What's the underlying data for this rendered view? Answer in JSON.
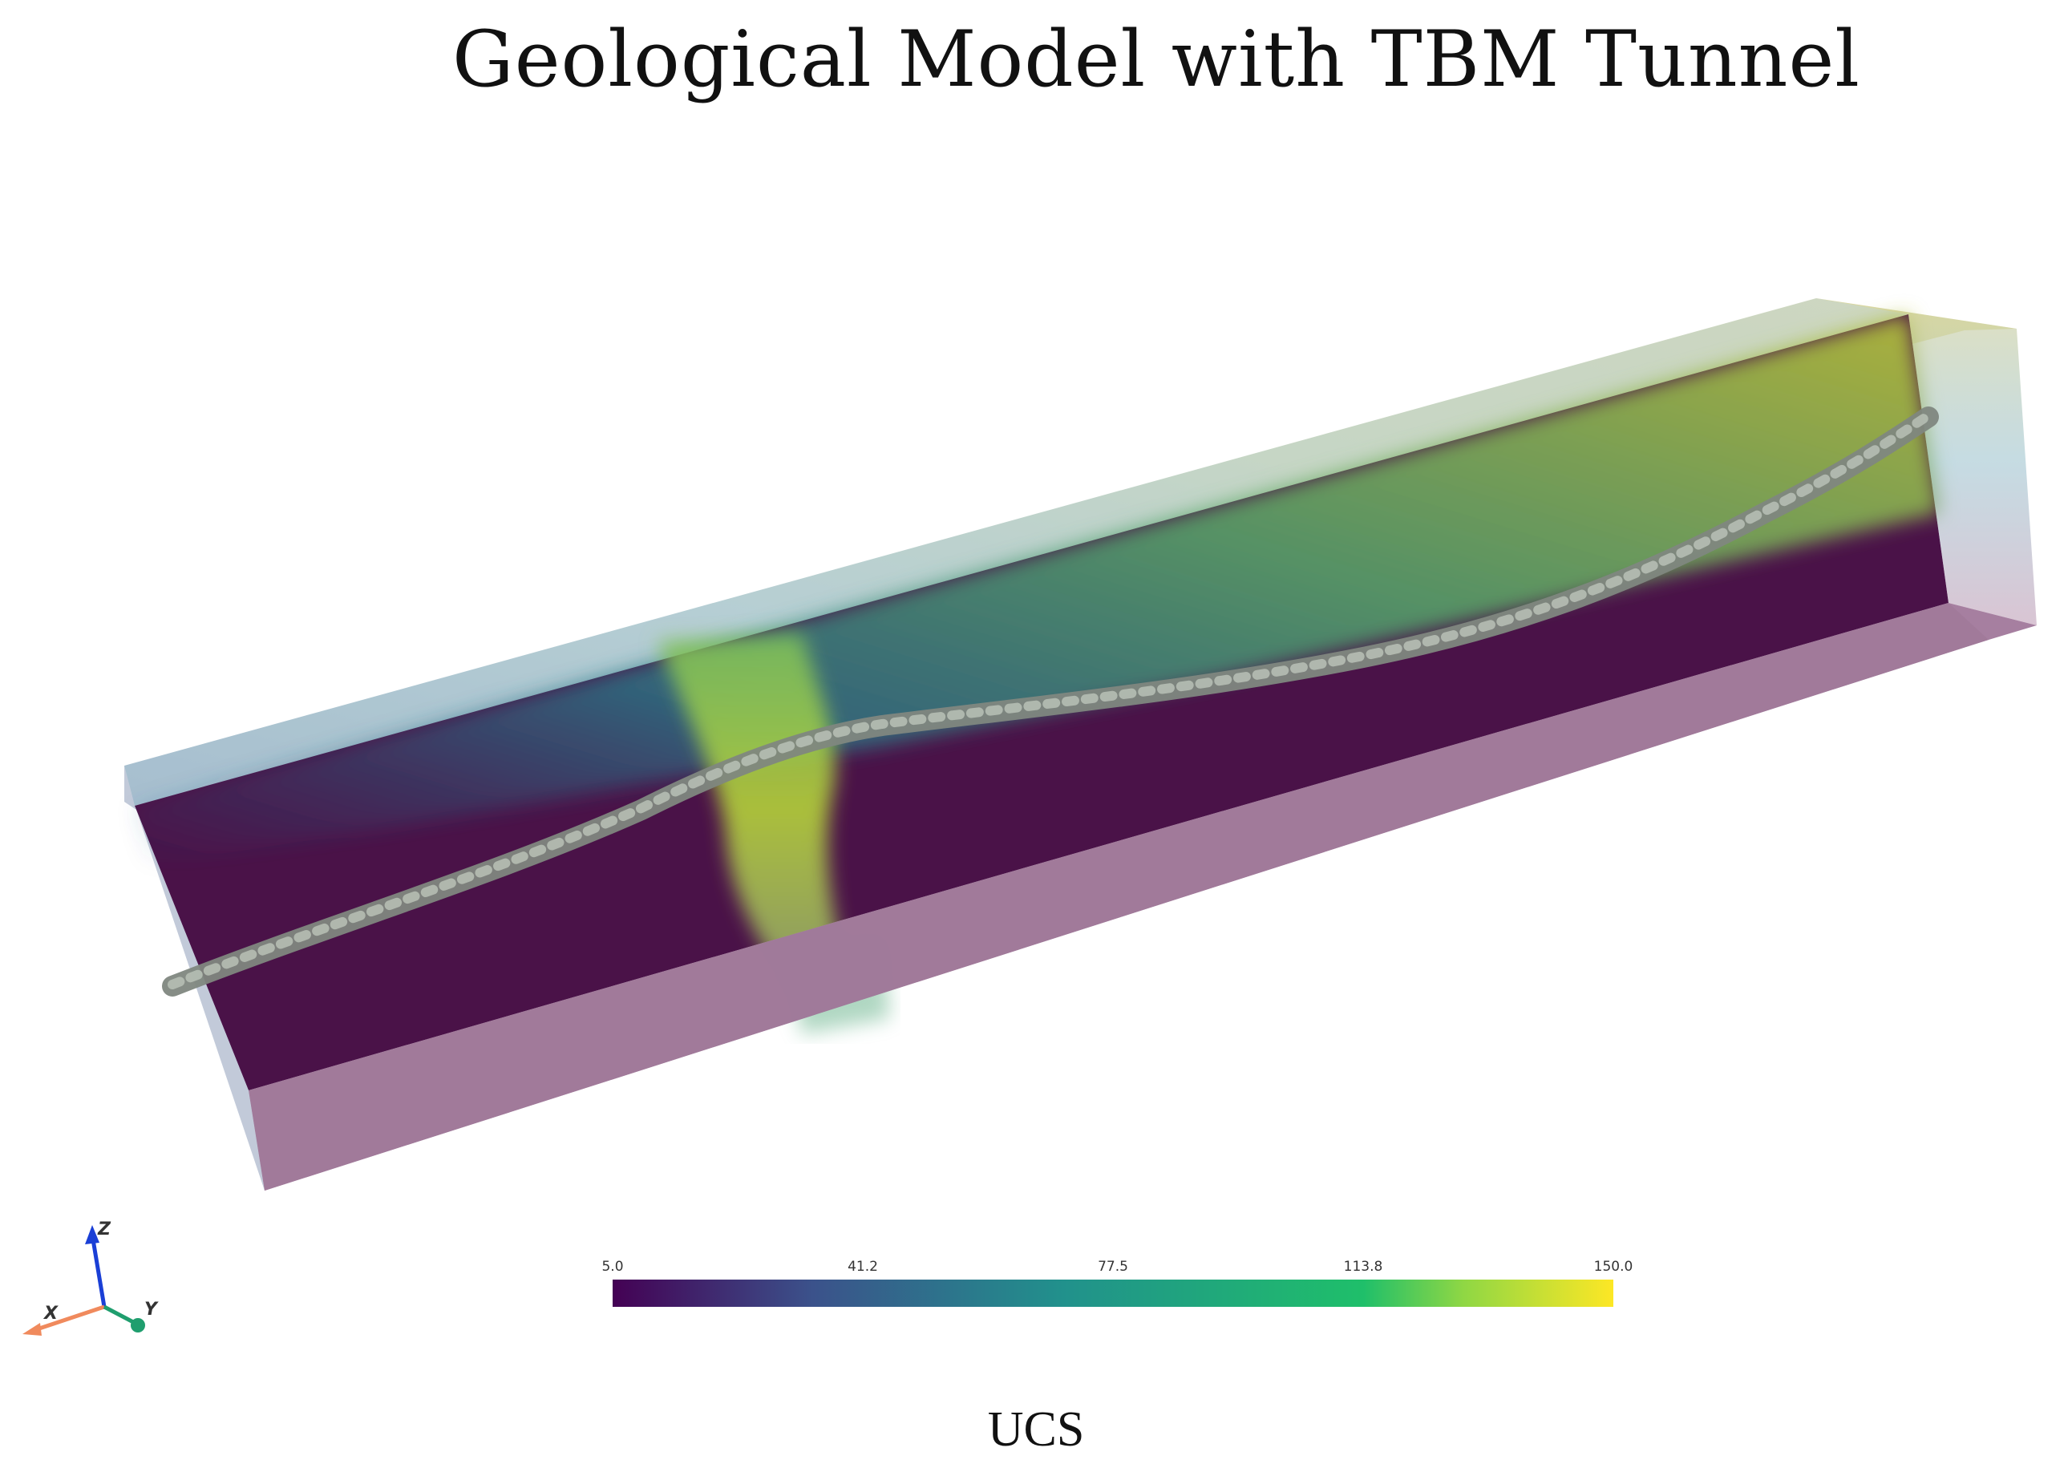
{
  "title": "Geological Model with TBM Tunnel",
  "colorbar": {
    "label": "UCS",
    "min": 5.0,
    "max": 150.0,
    "ticks": [
      "5.0",
      "41.2",
      "77.5",
      "113.8",
      "150.0"
    ],
    "colormap": "viridis",
    "stops": [
      "#440154",
      "#3b528b",
      "#21918c",
      "#1fbf6a",
      "#8fd744",
      "#fde725"
    ]
  },
  "orientation_axes": {
    "x_label": "X",
    "y_label": "Y",
    "z_label": "Z",
    "x_color": "#f08a5d",
    "y_color": "#1f9e6e",
    "z_color": "#1a3fd6"
  },
  "model": {
    "block_color": "#4a1248",
    "tunnel_color": "#9aa39a"
  }
}
